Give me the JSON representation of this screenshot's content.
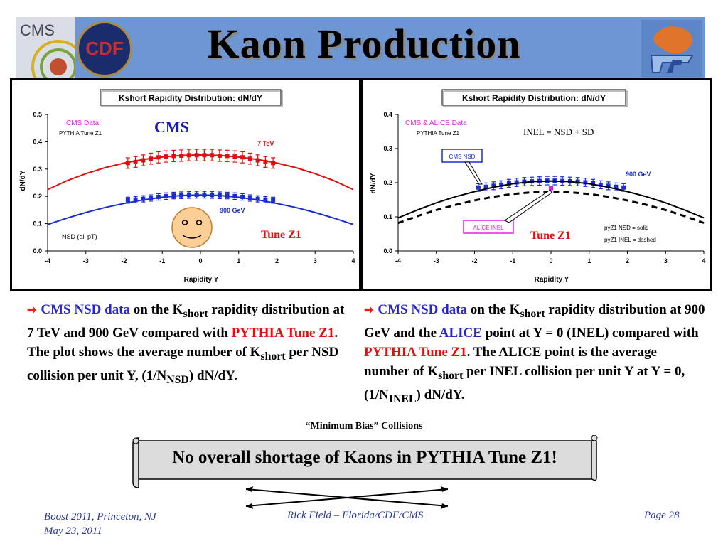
{
  "slide": {
    "title": "Kaon Production",
    "logos": {
      "cms": "CMS",
      "cdf": "CDF",
      "uf": "uf-logo"
    }
  },
  "chart_data": [
    {
      "type": "line",
      "title": "Kshort Rapidity Distribution: dN/dY",
      "xlabel": "Rapidity Y",
      "ylabel": "dN/dY",
      "xlim": [
        -4,
        4
      ],
      "ylim": [
        0,
        0.5
      ],
      "xticks": [
        "-4",
        "-3",
        "-2",
        "-1",
        "0",
        "1",
        "2",
        "3",
        "4"
      ],
      "yticks": [
        "0.0",
        "0.1",
        "0.2",
        "0.3",
        "0.4",
        "0.5"
      ],
      "annotations": {
        "data_label": "CMS Data",
        "model_label": "PYTHIA Tune Z1",
        "big_label": "CMS",
        "nsd": "NSD (all pT)",
        "tune": "Tune Z1"
      },
      "series": [
        {
          "name": "7 TeV",
          "kind": "data",
          "color": "#e01010",
          "x": [
            -1.9,
            -1.7,
            -1.5,
            -1.3,
            -1.1,
            -0.9,
            -0.7,
            -0.5,
            -0.3,
            -0.1,
            0.1,
            0.3,
            0.5,
            0.7,
            0.9,
            1.1,
            1.3,
            1.5,
            1.7,
            1.9
          ],
          "y": [
            0.322,
            0.326,
            0.332,
            0.338,
            0.343,
            0.346,
            0.348,
            0.349,
            0.351,
            0.351,
            0.351,
            0.351,
            0.349,
            0.348,
            0.346,
            0.343,
            0.338,
            0.332,
            0.326,
            0.322
          ]
        },
        {
          "name": "900 GeV",
          "kind": "data",
          "color": "#1a2ed0",
          "x": [
            -1.9,
            -1.7,
            -1.5,
            -1.3,
            -1.1,
            -0.9,
            -0.7,
            -0.5,
            -0.3,
            -0.1,
            0.1,
            0.3,
            0.5,
            0.7,
            0.9,
            1.1,
            1.3,
            1.5,
            1.7,
            1.9
          ],
          "y": [
            0.186,
            0.188,
            0.191,
            0.194,
            0.198,
            0.201,
            0.203,
            0.204,
            0.205,
            0.206,
            0.206,
            0.205,
            0.204,
            0.203,
            0.201,
            0.198,
            0.194,
            0.191,
            0.188,
            0.186
          ]
        },
        {
          "name": "",
          "kind": "curve",
          "color": "#e01010",
          "x": [
            -4,
            -3.5,
            -3,
            -2.5,
            -2,
            -1.5,
            -1,
            -0.5,
            0,
            0.5,
            1,
            1.5,
            2,
            2.5,
            3,
            3.5,
            4
          ],
          "y": [
            0.225,
            0.257,
            0.283,
            0.305,
            0.322,
            0.335,
            0.344,
            0.35,
            0.352,
            0.35,
            0.344,
            0.335,
            0.322,
            0.305,
            0.283,
            0.257,
            0.225
          ]
        },
        {
          "name": "",
          "kind": "curve",
          "color": "#1a2ed0",
          "x": [
            -4,
            -3.5,
            -3,
            -2.5,
            -2,
            -1.5,
            -1,
            -0.5,
            0,
            0.5,
            1,
            1.5,
            2,
            2.5,
            3,
            3.5,
            4
          ],
          "y": [
            0.097,
            0.12,
            0.141,
            0.159,
            0.174,
            0.187,
            0.197,
            0.203,
            0.205,
            0.203,
            0.197,
            0.187,
            0.174,
            0.159,
            0.141,
            0.12,
            0.097
          ]
        }
      ]
    },
    {
      "type": "line",
      "title": "Kshort Rapidity Distribution: dN/dY",
      "xlabel": "Rapidity Y",
      "ylabel": "dN/dY",
      "xlim": [
        -4,
        4
      ],
      "ylim": [
        0,
        0.4
      ],
      "xticks": [
        "-4",
        "-3",
        "-2",
        "-1",
        "0",
        "1",
        "2",
        "3",
        "4"
      ],
      "yticks": [
        "0.0",
        "0.1",
        "0.2",
        "0.3",
        "0.4"
      ],
      "annotations": {
        "data_label": "CMS & ALICE Data",
        "model_label": "PYTHIA Tune Z1",
        "formula": "INEL = NSD + SD",
        "cms_nsd": "CMS NSD",
        "alice_inel": "ALICE INEL",
        "energy": "900 GeV",
        "tune": "Tune Z1",
        "legend1": "pyZ1 NSD = solid",
        "legend2": "pyZ1 INEL = dashed"
      },
      "series": [
        {
          "name": "CMS NSD",
          "kind": "data",
          "color": "#1a2ed0",
          "x": [
            -1.9,
            -1.7,
            -1.5,
            -1.3,
            -1.1,
            -0.9,
            -0.7,
            -0.5,
            -0.3,
            -0.1,
            0.1,
            0.3,
            0.5,
            0.7,
            0.9,
            1.1,
            1.3,
            1.5,
            1.7,
            1.9
          ],
          "y": [
            0.186,
            0.188,
            0.191,
            0.194,
            0.198,
            0.201,
            0.203,
            0.204,
            0.205,
            0.206,
            0.206,
            0.205,
            0.204,
            0.203,
            0.201,
            0.198,
            0.194,
            0.191,
            0.188,
            0.186
          ]
        },
        {
          "name": "ALICE INEL",
          "kind": "point",
          "color": "#e020e0",
          "x": [
            0
          ],
          "y": [
            0.184
          ]
        },
        {
          "name": "pyZ1 NSD",
          "kind": "curve",
          "color": "#000000",
          "x": [
            -4,
            -3.5,
            -3,
            -2.5,
            -2,
            -1.5,
            -1,
            -0.5,
            0,
            0.5,
            1,
            1.5,
            2,
            2.5,
            3,
            3.5,
            4
          ],
          "y": [
            0.097,
            0.12,
            0.141,
            0.159,
            0.174,
            0.187,
            0.197,
            0.203,
            0.205,
            0.203,
            0.197,
            0.187,
            0.174,
            0.159,
            0.141,
            0.12,
            0.097
          ]
        },
        {
          "name": "pyZ1 INEL",
          "kind": "dashed",
          "color": "#000000",
          "x": [
            -4,
            -3.5,
            -3,
            -2.5,
            -2,
            -1.5,
            -1,
            -0.5,
            0,
            0.5,
            1,
            1.5,
            2,
            2.5,
            3,
            3.5,
            4
          ],
          "y": [
            0.082,
            0.102,
            0.12,
            0.135,
            0.148,
            0.159,
            0.167,
            0.172,
            0.174,
            0.172,
            0.167,
            0.159,
            0.148,
            0.135,
            0.12,
            0.102,
            0.082
          ]
        }
      ]
    }
  ],
  "bullets": {
    "left": {
      "p1": "CMS NSD data",
      "p2": " on the K",
      "sub1": "short",
      "p3": " rapidity distribution at 7 TeV and 900 GeV compared with ",
      "p4": "PYTHIA Tune Z1",
      "p5": ".  The plot shows the average number of K",
      "sub2": "short",
      "p6": " per NSD collision per unit Y, (1/N",
      "sub3": "NSD",
      "p7": ") dN/dY."
    },
    "right": {
      "p1": "CMS NSD data",
      "p2": " on the K",
      "sub1": "short",
      "p3": " rapidity distribution at 900 GeV and the ",
      "p4": "ALICE",
      "p5": " point at Y = 0 (INEL) compared with ",
      "p6": "PYTHIA Tune Z1",
      "p7": ".  The ALICE point is the average number of K",
      "sub2": "short",
      "p8": " per INEL collision per unit Y at Y = 0, (1/N",
      "sub3": "INEL",
      "p9": ") dN/dY."
    }
  },
  "minimum_bias": "“Minimum Bias” Collisions",
  "scroll_text": "No overall shortage of Kaons in PYTHIA Tune Z1!",
  "footer": {
    "left_line1": "Boost 2011, Princeton, NJ",
    "left_line2": "May 23, 2011",
    "center": "Rick Field – Florida/CDF/CMS",
    "right": "Page 28"
  }
}
